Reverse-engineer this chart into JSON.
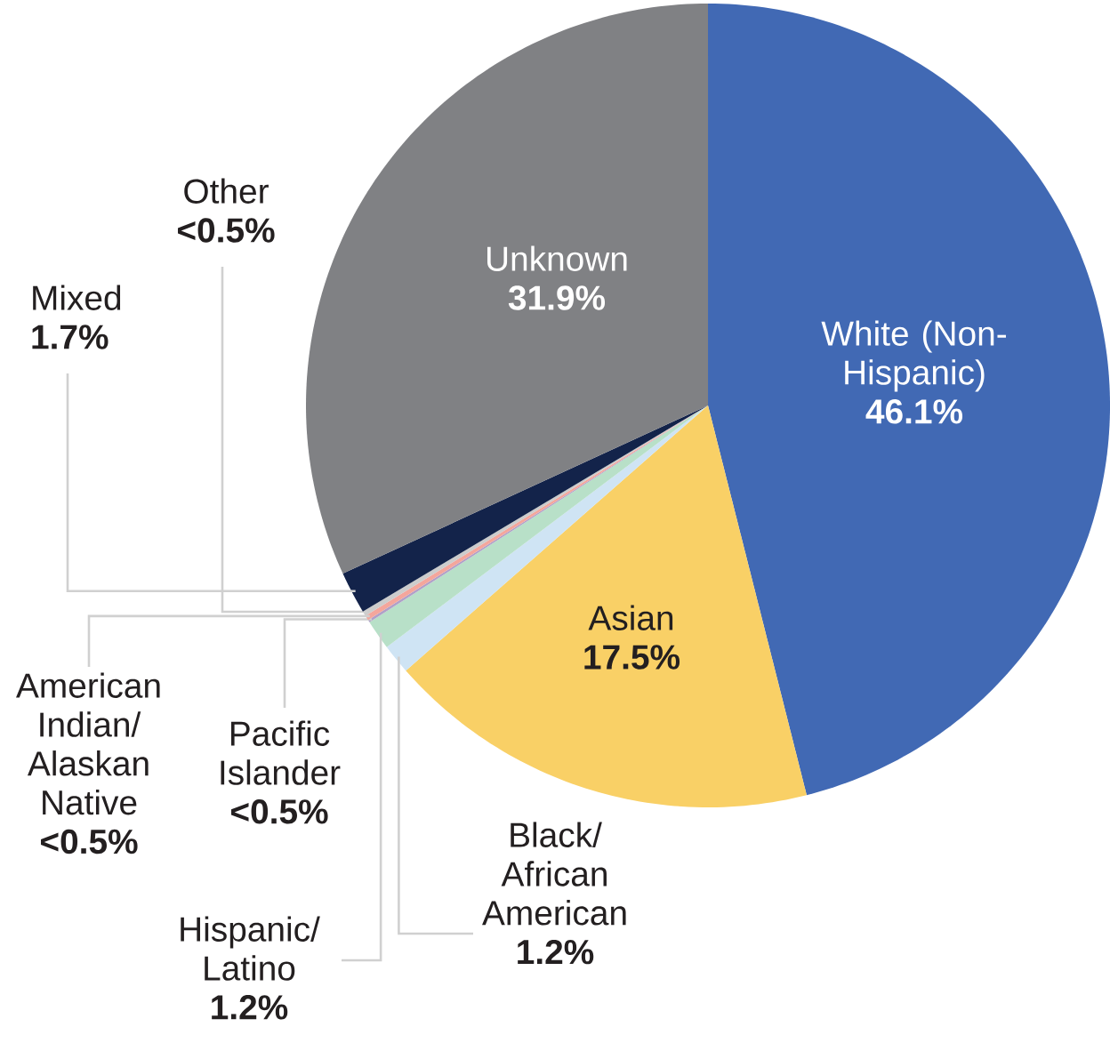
{
  "chart_data": {
    "type": "pie",
    "categories": [
      "White (Non-Hispanic)",
      "Asian",
      "Black/ African American",
      "Hispanic/ Latino",
      "Pacific Islander",
      "American Indian/ Alaskan Native",
      "Other",
      "Mixed",
      "Unknown"
    ],
    "values": [
      46.1,
      17.5,
      1.2,
      1.2,
      0.1,
      0.2,
      0.2,
      1.7,
      31.9
    ],
    "value_labels": [
      "46.1%",
      "17.5%",
      "1.2%",
      "1.2%",
      "<0.5%",
      "<0.5%",
      "<0.5%",
      "1.7%",
      "31.9%"
    ],
    "colors": [
      "#4169b4",
      "#f9d066",
      "#cfe4f4",
      "#b8e0c8",
      "#b0a0c8",
      "#f4a69c",
      "#cccccc",
      "#13234a",
      "#808184"
    ]
  }
}
